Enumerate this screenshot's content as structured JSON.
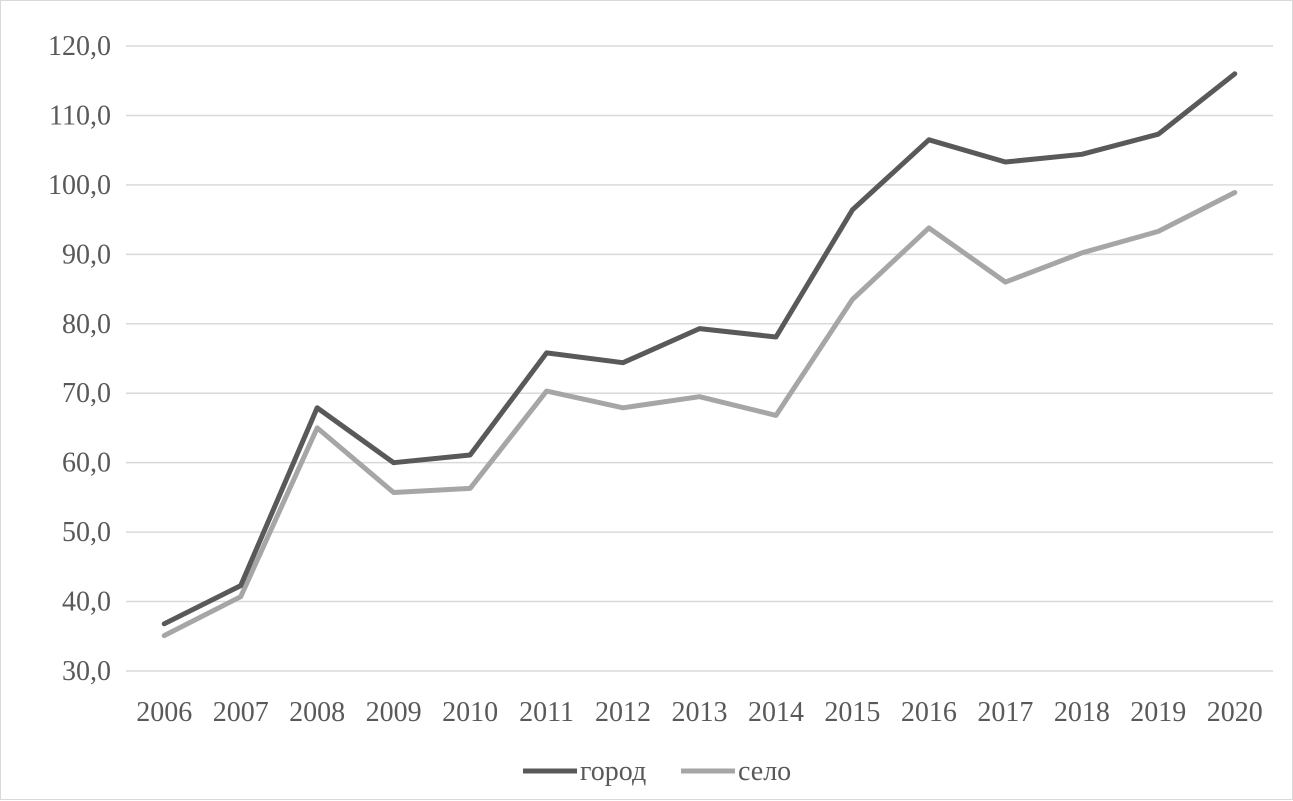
{
  "chart_data": {
    "type": "line",
    "x": [
      "2006",
      "2007",
      "2008",
      "2009",
      "2010",
      "2011",
      "2012",
      "2013",
      "2014",
      "2015",
      "2016",
      "2017",
      "2018",
      "2019",
      "2020"
    ],
    "series": [
      {
        "name": "город",
        "color": "#595959",
        "values": [
          36.8,
          42.3,
          67.9,
          60.0,
          61.1,
          75.8,
          74.4,
          79.3,
          78.1,
          96.4,
          106.5,
          103.3,
          104.4,
          107.3,
          116.0
        ]
      },
      {
        "name": "село",
        "color": "#a6a6a6",
        "values": [
          35.1,
          40.7,
          65.0,
          55.7,
          56.3,
          70.3,
          67.9,
          69.5,
          66.8,
          83.5,
          93.8,
          86.0,
          90.2,
          93.3,
          98.9
        ]
      }
    ],
    "ylim": [
      30,
      120
    ],
    "yticks": [
      "30,0",
      "40,0",
      "50,0",
      "60,0",
      "70,0",
      "80,0",
      "90,0",
      "100,0",
      "110,0",
      "120,0"
    ],
    "grid": "horizontal",
    "legend": "bottom",
    "title": "",
    "xlabel": "",
    "ylabel": ""
  }
}
